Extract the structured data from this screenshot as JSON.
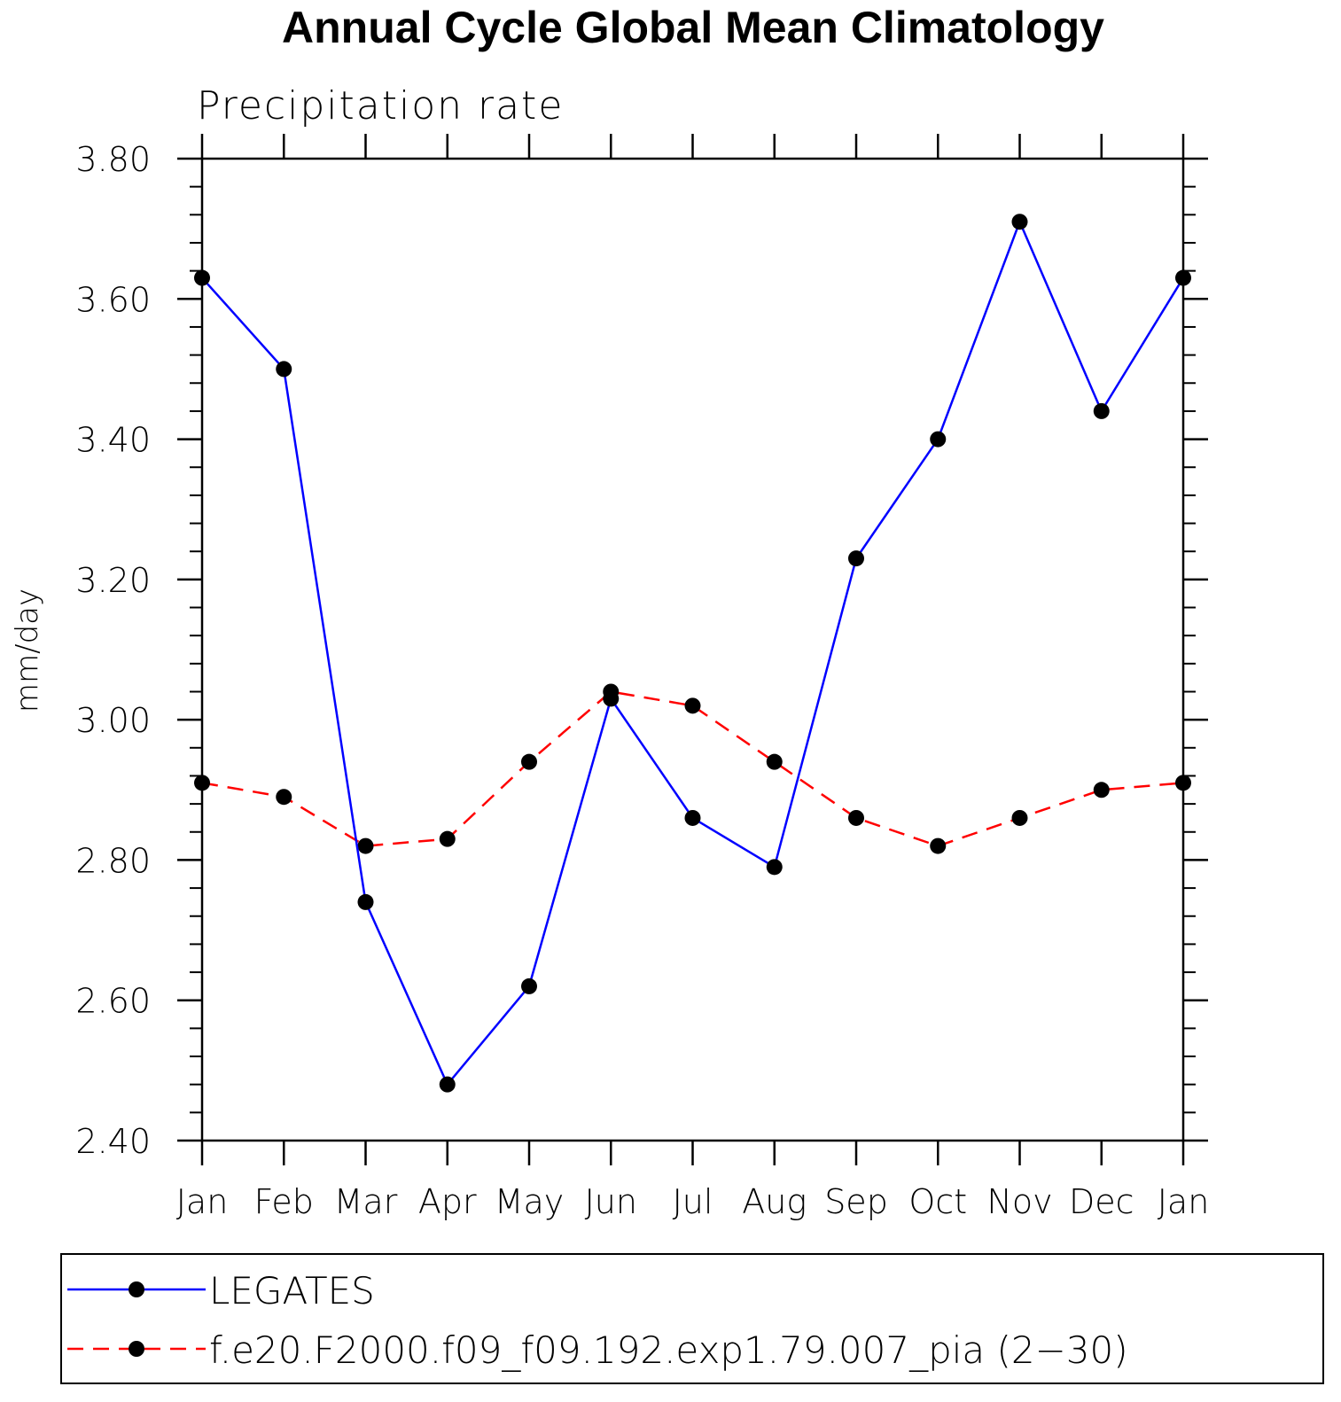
{
  "chart_data": {
    "type": "line",
    "title": "Annual Cycle Global Mean Climatology",
    "subtitle": "Precipitation rate",
    "xlabel": "",
    "ylabel": "mm/day",
    "categories": [
      "Jan",
      "Feb",
      "Mar",
      "Apr",
      "May",
      "Jun",
      "Jul",
      "Aug",
      "Sep",
      "Oct",
      "Nov",
      "Dec",
      "Jan"
    ],
    "ylim": [
      2.4,
      3.8
    ],
    "yticks": [
      "2.40",
      "2.60",
      "2.80",
      "3.00",
      "3.20",
      "3.40",
      "3.60",
      "3.80"
    ],
    "ytick_values": [
      2.4,
      2.6,
      2.8,
      3.0,
      3.2,
      3.4,
      3.6,
      3.8
    ],
    "grid": false,
    "legend_position": "bottom",
    "series": [
      {
        "name": "LEGATES",
        "color": "#0000ff",
        "line_style": "solid",
        "marker": "filled-circle",
        "values": [
          3.63,
          3.5,
          2.74,
          2.48,
          2.62,
          3.03,
          2.86,
          2.79,
          3.23,
          3.4,
          3.71,
          3.44,
          3.63
        ]
      },
      {
        "name": "f.e20.F2000.f09_f09.192.exp1.79.007_pia (2−30)",
        "color": "#ff0000",
        "line_style": "dashed",
        "marker": "filled-circle",
        "values": [
          2.91,
          2.89,
          2.82,
          2.83,
          2.94,
          3.04,
          3.02,
          2.94,
          2.86,
          2.82,
          2.86,
          2.9,
          2.91
        ]
      }
    ]
  }
}
